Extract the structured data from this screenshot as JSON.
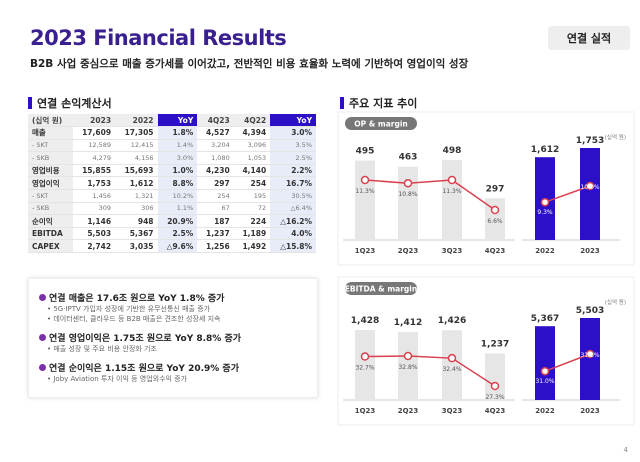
{
  "title": "2023 Financial Results",
  "badge": "연결 실적",
  "subtitle": "B2B 사업 중심으로 매출 증가세를 이어갔고, 전반적인 비용 효율화 노력에 기반하여 영업이익 성장",
  "table_section": "연결 손익계산서",
  "table": {
    "headers": [
      "(십억 원)",
      "2023",
      "2022",
      "YoY",
      "4Q23",
      "4Q22",
      "YoY"
    ],
    "rows": [
      {
        "type": "main",
        "cells": [
          "매출",
          "17,609",
          "17,305",
          "1.8%",
          "4,527",
          "4,394",
          "3.0%"
        ]
      },
      {
        "type": "sub",
        "cells": [
          "- SKT",
          "12,589",
          "12,415",
          "1.4%",
          "3,204",
          "3,096",
          "3.5%"
        ]
      },
      {
        "type": "sub",
        "cells": [
          "- SKB",
          "4,279",
          "4,156",
          "3.0%",
          "1,080",
          "1,053",
          "2.5%"
        ]
      },
      {
        "type": "main",
        "cells": [
          "영업비용",
          "15,855",
          "15,693",
          "1.0%",
          "4,230",
          "4,140",
          "2.2%"
        ]
      },
      {
        "type": "main",
        "cells": [
          "영업이익",
          "1,753",
          "1,612",
          "8.8%",
          "297",
          "254",
          "16.7%"
        ]
      },
      {
        "type": "sub",
        "cells": [
          "- SKT",
          "1,456",
          "1,321",
          "10.2%",
          "254",
          "195",
          "30.5%"
        ]
      },
      {
        "type": "sub",
        "cells": [
          "- SKB",
          "309",
          "306",
          "1.1%",
          "67",
          "72",
          "△6.4%"
        ]
      },
      {
        "type": "main",
        "cells": [
          "순이익",
          "1,146",
          "948",
          "20.9%",
          "187",
          "224",
          "△16.2%"
        ]
      },
      {
        "type": "main",
        "cells": [
          "EBITDA",
          "5,503",
          "5,367",
          "2.5%",
          "1,237",
          "1,189",
          "4.0%"
        ]
      },
      {
        "type": "main",
        "cells": [
          "CAPEX",
          "2,742",
          "3,035",
          "△9.6%",
          "1,256",
          "1,492",
          "△15.8%"
        ]
      }
    ]
  },
  "highlights": [
    {
      "head": "연결 매출은 17.6조 원으로 YoY 1.8% 증가",
      "bullets": [
        "• 5G·IPTV 가입자 성장에 기반한 유무선통신 매출 증가",
        "• 데이터센터, 클라우드 등 B2B 매출은 견조한 성장세 지속"
      ]
    },
    {
      "head": "연결 영업이익은 1.75조 원으로 YoY 8.8% 증가",
      "bullets": [
        "• 매출 성장 및 주요 비용 안정화 기조"
      ]
    },
    {
      "head": "연결 순이익은 1.15조 원으로 YoY 20.9% 증가",
      "bullets": [
        "• Joby Aviation 투자 이익 등 영업외수익 증가"
      ]
    }
  ],
  "chart_section": "주요 지표 추이",
  "page_number": "4",
  "colors": {
    "accent": "#2c10c8",
    "line": "#d9414f",
    "gray_bar": "#e6e6e6"
  },
  "chart_data": [
    {
      "type": "bar+line",
      "title": "OP & margin",
      "unit": "(십억 원)",
      "categories": [
        "1Q23",
        "2Q23",
        "3Q23",
        "4Q23"
      ],
      "values": [
        495,
        463,
        498,
        297
      ],
      "value_labels": [
        "495",
        "463",
        "498",
        "297"
      ],
      "margin": [
        11.3,
        10.8,
        11.3,
        6.6
      ],
      "margin_labels": [
        "11.3%",
        "10.8%",
        "11.3%",
        "6.6%"
      ],
      "annual": {
        "categories": [
          "2022",
          "2023"
        ],
        "values": [
          1612,
          1753
        ],
        "value_labels": [
          "1,612",
          "1,753"
        ],
        "margin": [
          9.3,
          10.0
        ],
        "margin_labels": [
          "9.3%",
          "10.0%"
        ]
      }
    },
    {
      "type": "bar+line",
      "title": "EBITDA & margin",
      "unit": "(십억 원)",
      "categories": [
        "1Q23",
        "2Q23",
        "3Q23",
        "4Q23"
      ],
      "values": [
        1428,
        1412,
        1426,
        1237
      ],
      "value_labels": [
        "1,428",
        "1,412",
        "1,426",
        "1,237"
      ],
      "margin": [
        32.7,
        32.8,
        32.4,
        27.3
      ],
      "margin_labels": [
        "32.7%",
        "32.8%",
        "32.4%",
        "27.3%"
      ],
      "annual": {
        "categories": [
          "2022",
          "2023"
        ],
        "values": [
          5367,
          5503
        ],
        "value_labels": [
          "5,367",
          "5,503"
        ],
        "margin": [
          31.0,
          31.3
        ],
        "margin_labels": [
          "31.0%",
          "31.3%"
        ]
      }
    }
  ]
}
